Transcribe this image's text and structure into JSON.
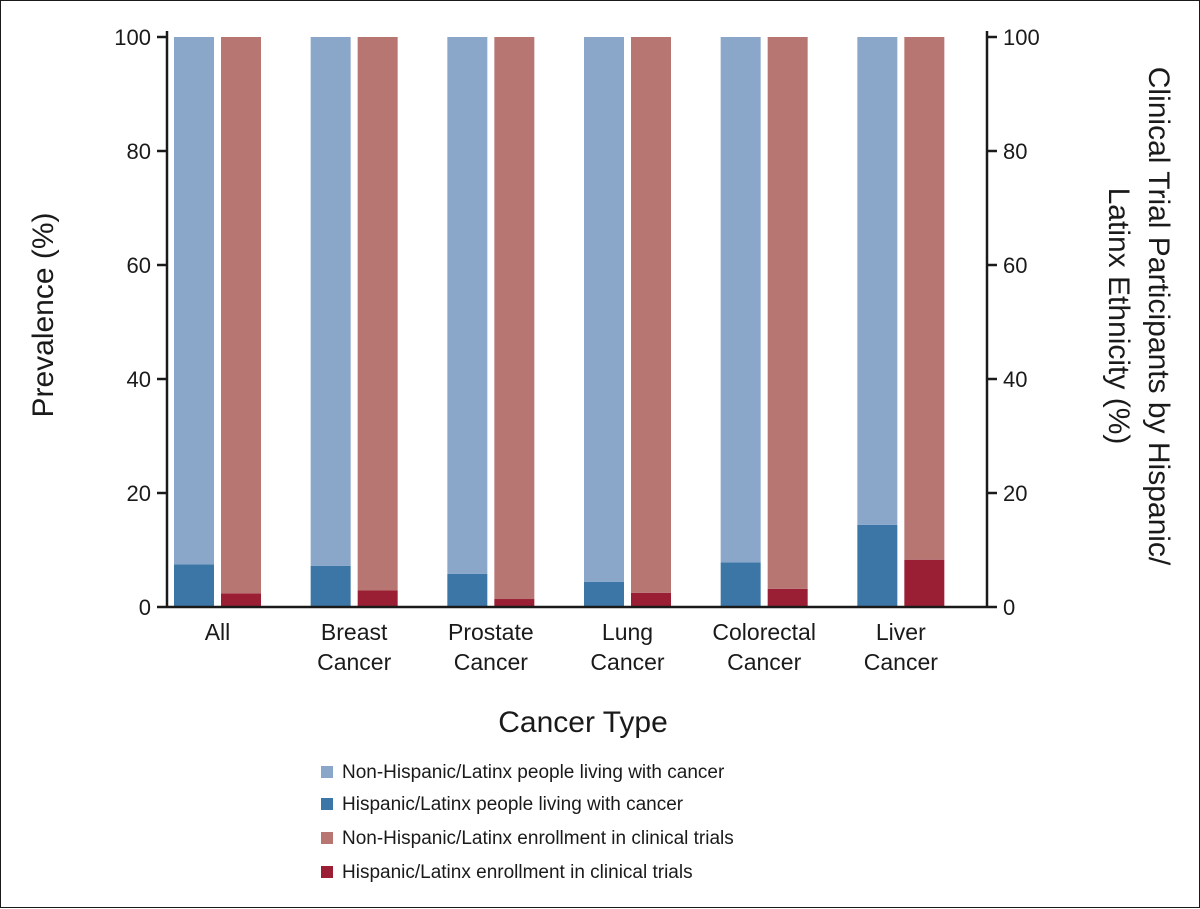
{
  "chart_data": {
    "type": "bar",
    "xlabel": "Cancer Type",
    "ylabel": "Prevalence (%)",
    "ylabel_right": [
      "Clinical Trial Participants by Hispanic/",
      "Latinx Ethnicity (%)"
    ],
    "ylim": [
      0,
      100
    ],
    "yticks": [
      "0",
      "20",
      "40",
      "60",
      "80",
      "100"
    ],
    "categories": [
      [
        "All"
      ],
      [
        "Breast",
        "Cancer"
      ],
      [
        "Prostate",
        "Cancer"
      ],
      [
        "Lung",
        "Cancer"
      ],
      [
        "Colorectal",
        "Cancer"
      ],
      [
        "Liver",
        "Cancer"
      ]
    ],
    "series": [
      {
        "name": "Non-Hispanic/Latinx people living with cancer",
        "color": "#8AA7C9",
        "values": [
          92.5,
          92.8,
          94.2,
          95.6,
          92.2,
          85.6
        ]
      },
      {
        "name": "Hispanic/Latinx people living with cancer",
        "color": "#3C76A6",
        "values": [
          7.5,
          7.2,
          5.8,
          4.4,
          7.8,
          14.4
        ]
      },
      {
        "name": "Non-Hispanic/Latinx enrollment in clinical trials",
        "color": "#B87672",
        "values": [
          97.6,
          97.1,
          98.6,
          97.5,
          96.8,
          91.7
        ]
      },
      {
        "name": "Hispanic/Latinx enrollment in clinical trials",
        "color": "#9B1F34",
        "values": [
          2.4,
          2.9,
          1.4,
          2.5,
          3.2,
          8.3
        ]
      }
    ],
    "legend_position": "bottom"
  }
}
